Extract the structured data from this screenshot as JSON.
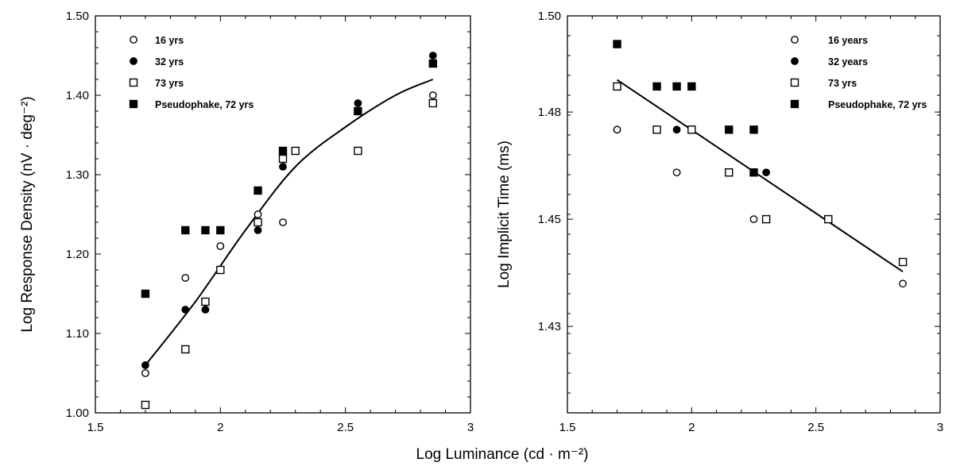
{
  "figure": {
    "shared_xlabel": "Log Luminance (cd · m⁻²)"
  },
  "chart_data": [
    {
      "type": "scatter",
      "xlabel": "",
      "ylabel": "Log Response Density (nV · deg⁻²)",
      "xlim": [
        1.5,
        3.0
      ],
      "ylim": [
        1.0,
        1.5
      ],
      "xticks": [
        1.5,
        2.0,
        2.5,
        3.0
      ],
      "xtick_labels": [
        "1.5",
        "2",
        "2.5",
        "3"
      ],
      "yticks": [
        1.0,
        1.1,
        1.2,
        1.3,
        1.4,
        1.5
      ],
      "ytick_labels": [
        "1.00",
        "1.10",
        "1.20",
        "1.30",
        "1.40",
        "1.50"
      ],
      "grid": false,
      "legend_position": "top-left",
      "series": [
        {
          "name": "16 yrs",
          "marker": "open-circle",
          "x": [
            1.7,
            1.86,
            2.0,
            2.15,
            2.25,
            2.55,
            2.85
          ],
          "y": [
            1.05,
            1.17,
            1.21,
            1.25,
            1.24,
            1.33,
            1.4
          ]
        },
        {
          "name": "32 yrs",
          "marker": "filled-circle",
          "x": [
            1.7,
            1.86,
            1.94,
            2.15,
            2.25,
            2.55,
            2.85
          ],
          "y": [
            1.06,
            1.13,
            1.13,
            1.23,
            1.31,
            1.39,
            1.45
          ]
        },
        {
          "name": "73 yrs",
          "marker": "open-square",
          "x": [
            1.7,
            1.86,
            1.94,
            2.0,
            2.15,
            2.25,
            2.3,
            2.55,
            2.85
          ],
          "y": [
            1.01,
            1.08,
            1.14,
            1.18,
            1.24,
            1.32,
            1.33,
            1.33,
            1.39
          ]
        },
        {
          "name": "Pseudophake, 72 yrs",
          "marker": "filled-square",
          "x": [
            1.7,
            1.86,
            1.94,
            2.0,
            2.15,
            2.25,
            2.55,
            2.85
          ],
          "y": [
            1.15,
            1.23,
            1.23,
            1.23,
            1.28,
            1.33,
            1.38,
            1.44
          ]
        }
      ],
      "fit": {
        "type": "quadratic",
        "x": [
          1.7,
          1.9,
          2.1,
          2.3,
          2.5,
          2.7,
          2.85
        ],
        "y": [
          1.06,
          1.14,
          1.23,
          1.31,
          1.36,
          1.4,
          1.42
        ]
      }
    },
    {
      "type": "scatter",
      "xlabel": "",
      "ylabel": "Log Implicit Time (ms)",
      "xlim": [
        1.5,
        3.0
      ],
      "ylim": [
        1.41,
        1.5
      ],
      "xticks": [
        1.5,
        2.0,
        2.5,
        3.0
      ],
      "xtick_labels": [
        "1.5",
        "2",
        "2.5",
        "3"
      ],
      "yticks": [
        1.43,
        1.45,
        1.48,
        1.5
      ],
      "ytick_labels": [
        "1.43",
        "1.45",
        "1.48",
        "1.50"
      ],
      "ytick_positions": [
        1.4296,
        1.4539,
        1.4782,
        1.5
      ],
      "grid": false,
      "legend_position": "top-right",
      "series": [
        {
          "name": "16 years",
          "marker": "open-circle",
          "x": [
            1.7,
            1.94,
            2.25,
            2.85
          ],
          "y": [
            1.4742,
            1.4645,
            1.4539,
            1.4393
          ]
        },
        {
          "name": "32 years",
          "marker": "filled-circle",
          "x": [
            1.94,
            2.3
          ],
          "y": [
            1.4742,
            1.4645
          ]
        },
        {
          "name": "73 yrs",
          "marker": "open-square",
          "x": [
            1.7,
            1.86,
            2.0,
            2.15,
            2.3,
            2.55,
            2.85
          ],
          "y": [
            1.484,
            1.4742,
            1.4742,
            1.4645,
            1.4539,
            1.4539,
            1.4442
          ]
        },
        {
          "name": "Pseudophake, 72 yrs",
          "marker": "filled-square",
          "x": [
            1.7,
            1.86,
            1.94,
            2.0,
            2.15,
            2.25,
            2.25
          ],
          "y": [
            1.4936,
            1.484,
            1.484,
            1.484,
            1.4742,
            1.4742,
            1.4645
          ]
        }
      ],
      "fit": {
        "type": "linear",
        "x": [
          1.7,
          2.85
        ],
        "y": [
          1.4855,
          1.442
        ]
      }
    }
  ]
}
